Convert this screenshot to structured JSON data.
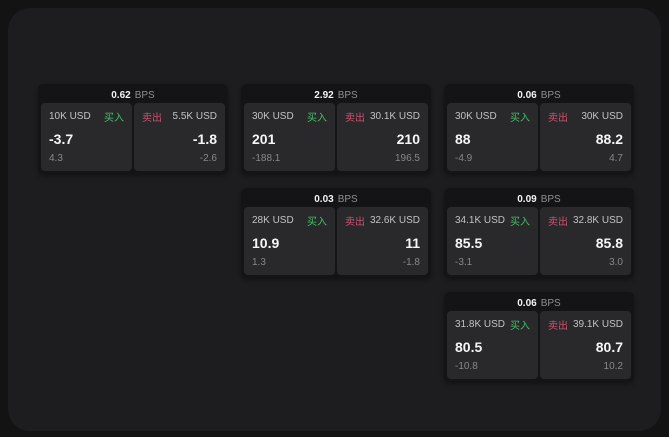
{
  "unit_label": "BPS",
  "buy_label": "买入",
  "sell_label": "卖出",
  "colors": {
    "buy_accent": "#41c067",
    "sell_accent": "#cc4f6e",
    "panel_bg": "#1d1d1f",
    "card_bg": "#141416",
    "tile_bg": "#29292b"
  },
  "cards": [
    {
      "row": 1,
      "col": 1,
      "bps": "0.62",
      "buy": {
        "amount": "10K USD",
        "value": "-3.7",
        "delta": "4.3"
      },
      "sell": {
        "amount": "5.5K USD",
        "value": "-1.8",
        "delta": "-2.6"
      }
    },
    {
      "row": 1,
      "col": 2,
      "bps": "2.92",
      "buy": {
        "amount": "30K USD",
        "value": "201",
        "delta": "-188.1"
      },
      "sell": {
        "amount": "30.1K USD",
        "value": "210",
        "delta": "196.5"
      }
    },
    {
      "row": 1,
      "col": 3,
      "bps": "0.06",
      "buy": {
        "amount": "30K USD",
        "value": "88",
        "delta": "-4.9"
      },
      "sell": {
        "amount": "30K USD",
        "value": "88.2",
        "delta": "4.7"
      }
    },
    {
      "row": 2,
      "col": 2,
      "bps": "0.03",
      "buy": {
        "amount": "28K USD",
        "value": "10.9",
        "delta": "1.3"
      },
      "sell": {
        "amount": "32.6K USD",
        "value": "11",
        "delta": "-1.8"
      }
    },
    {
      "row": 2,
      "col": 3,
      "bps": "0.09",
      "buy": {
        "amount": "34.1K USD",
        "value": "85.5",
        "delta": "-3.1"
      },
      "sell": {
        "amount": "32.8K USD",
        "value": "85.8",
        "delta": "3.0"
      }
    },
    {
      "row": 3,
      "col": 3,
      "bps": "0.06",
      "buy": {
        "amount": "31.8K USD",
        "value": "80.5",
        "delta": "-10.8"
      },
      "sell": {
        "amount": "39.1K USD",
        "value": "80.7",
        "delta": "10.2"
      }
    }
  ]
}
